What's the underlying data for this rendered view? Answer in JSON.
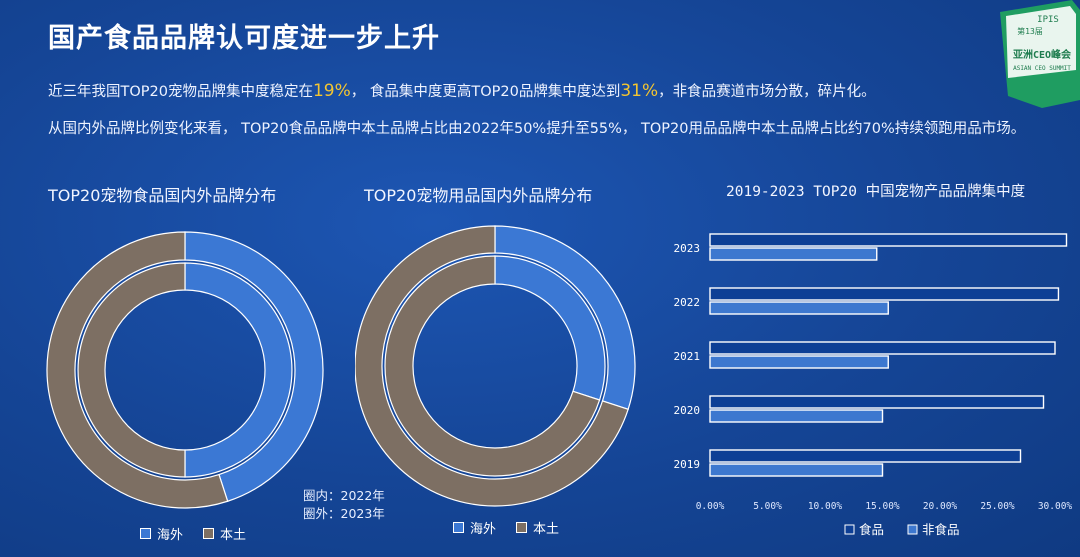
{
  "title": "国产食品品牌认可度进一步上升",
  "paragraph1": {
    "pre": "近三年我国TOP20宠物品牌集中度稳定在",
    "v1": "19%",
    "mid": "，  食品集中度更高TOP20品牌集中度达到",
    "v2": "31%",
    "post": "，非食品赛道市场分散，碎片化。"
  },
  "paragraph2": "从国内外品牌比例变化来看，  TOP20食品品牌中本土品牌占比由2022年50%提升至55%，  TOP20用品品牌中本土品牌占比约70%持续领跑用品市场。",
  "logo": {
    "line1": "IPIS",
    "line2": "第13届",
    "line3": "亚洲CEO峰会",
    "line4": "ASIAN CEO SUMMIT"
  },
  "colors": {
    "overseas": "#3b78d4",
    "domestic": "#7d6f63",
    "food": "#0d3f95",
    "nonfood": "#3d78cf",
    "bar_outline": "#ffffff"
  },
  "chart_data": [
    {
      "type": "pie",
      "subtype": "nested-donut",
      "title": "TOP20宠物食品国内外品牌分布",
      "categories": [
        "海外",
        "本土"
      ],
      "series": [
        {
          "name": "2022年",
          "ring": "inner",
          "values": [
            50,
            50
          ]
        },
        {
          "name": "2023年",
          "ring": "outer",
          "values": [
            45,
            55
          ]
        }
      ],
      "legend": [
        "海外",
        "本土"
      ],
      "note": [
        "圈内：2022年",
        "圈外：2023年"
      ]
    },
    {
      "type": "pie",
      "subtype": "nested-donut",
      "title": "TOP20宠物用品国内外品牌分布",
      "categories": [
        "海外",
        "本土"
      ],
      "series": [
        {
          "name": "2022年",
          "ring": "inner",
          "values": [
            30,
            70
          ]
        },
        {
          "name": "2023年",
          "ring": "outer",
          "values": [
            30,
            70
          ]
        }
      ],
      "legend": [
        "海外",
        "本土"
      ]
    },
    {
      "type": "bar",
      "orientation": "horizontal",
      "title": "2019-2023 TOP20 中国宠物产品品牌集中度",
      "categories": [
        "2019",
        "2020",
        "2021",
        "2022",
        "2023"
      ],
      "series": [
        {
          "name": "食品",
          "values": [
            27,
            29,
            30,
            30.3,
            31
          ]
        },
        {
          "name": "非食品",
          "values": [
            15,
            15,
            15.5,
            15.5,
            14.5
          ]
        }
      ],
      "xlim": [
        0,
        30
      ],
      "xticks": [
        "0.00%",
        "5.00%",
        "10.00%",
        "15.00%",
        "20.00%",
        "25.00%",
        "30.00%"
      ],
      "legend": [
        "食品",
        "非食品"
      ]
    }
  ]
}
